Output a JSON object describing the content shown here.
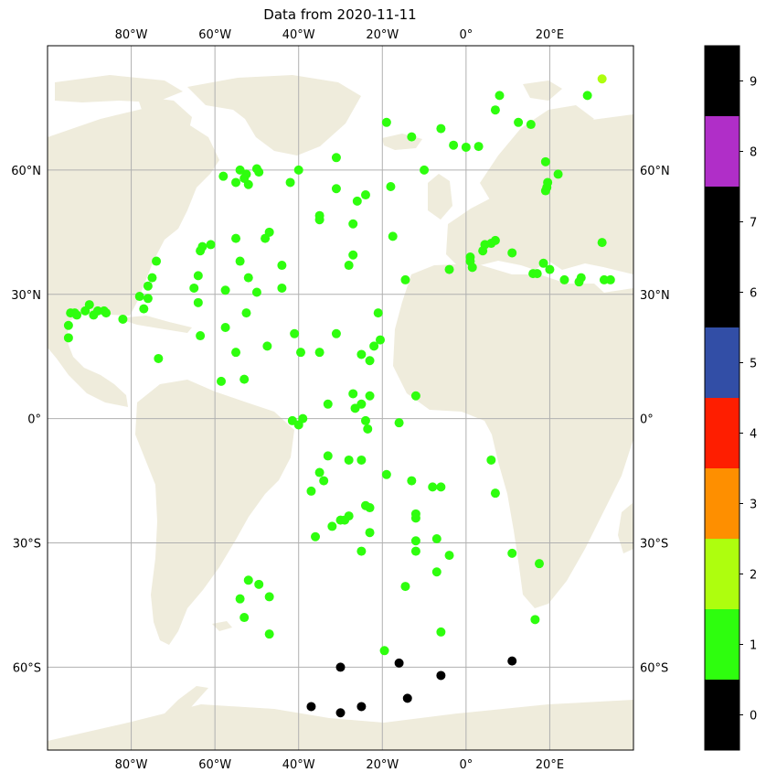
{
  "title": "Data from 2020-11-11",
  "map": {
    "lon_range": [
      -100,
      40
    ],
    "lat_range": [
      -80,
      90
    ],
    "grid": true,
    "land_color": "#efecdc",
    "ocean_color": "#ffffff",
    "grid_color": "#b0b0b0",
    "lon_ticks": [
      {
        "value": -80,
        "label": "80°W"
      },
      {
        "value": -60,
        "label": "60°W"
      },
      {
        "value": -40,
        "label": "40°W"
      },
      {
        "value": -20,
        "label": "20°W"
      },
      {
        "value": 0,
        "label": "0°"
      },
      {
        "value": 20,
        "label": "20°E"
      }
    ],
    "lat_ticks": [
      {
        "value": 60,
        "label": "60°N"
      },
      {
        "value": 30,
        "label": "30°N"
      },
      {
        "value": 0,
        "label": "0°"
      },
      {
        "value": -30,
        "label": "30°S"
      },
      {
        "value": -60,
        "label": "60°S"
      }
    ]
  },
  "colorbar": {
    "segments": [
      {
        "value": 0,
        "color": "#000000"
      },
      {
        "value": 1,
        "color": "#2efe0e"
      },
      {
        "value": 2,
        "color": "#aefe0e"
      },
      {
        "value": 3,
        "color": "#fe8f00"
      },
      {
        "value": 4,
        "color": "#fe1e00"
      },
      {
        "value": 5,
        "color": "#324ea6"
      },
      {
        "value": 6,
        "color": "#000000"
      },
      {
        "value": 7,
        "color": "#000000"
      },
      {
        "value": 8,
        "color": "#b02ec8"
      },
      {
        "value": 9,
        "color": "#000000"
      }
    ],
    "tick_labels": [
      "0",
      "1",
      "2",
      "3",
      "4",
      "5",
      "6",
      "7",
      "8",
      "9"
    ]
  },
  "chart_data": {
    "type": "scatter",
    "title": "Data from 2020-11-11",
    "x_axis": "longitude",
    "y_axis": "latitude",
    "points": [
      {
        "lon": 32.5,
        "lat": 82,
        "v": 2
      },
      {
        "lon": 8,
        "lat": 78,
        "v": 1
      },
      {
        "lon": 7,
        "lat": 74.5,
        "v": 1
      },
      {
        "lon": 29,
        "lat": 78,
        "v": 1
      },
      {
        "lon": 12.5,
        "lat": 71.5,
        "v": 1
      },
      {
        "lon": 15.5,
        "lat": 71,
        "v": 1
      },
      {
        "lon": -19,
        "lat": 71.5,
        "v": 1
      },
      {
        "lon": -6,
        "lat": 70,
        "v": 1
      },
      {
        "lon": -13,
        "lat": 68,
        "v": 1
      },
      {
        "lon": -3,
        "lat": 66,
        "v": 1
      },
      {
        "lon": 0,
        "lat": 65.5,
        "v": 1
      },
      {
        "lon": 3,
        "lat": 65.7,
        "v": 1
      },
      {
        "lon": -31,
        "lat": 63,
        "v": 1
      },
      {
        "lon": 19,
        "lat": 62,
        "v": 1
      },
      {
        "lon": -10,
        "lat": 60,
        "v": 1
      },
      {
        "lon": -40,
        "lat": 60,
        "v": 1
      },
      {
        "lon": 22,
        "lat": 59,
        "v": 1
      },
      {
        "lon": -58,
        "lat": 58.5,
        "v": 1
      },
      {
        "lon": -54,
        "lat": 60,
        "v": 1
      },
      {
        "lon": -50,
        "lat": 60.3,
        "v": 1
      },
      {
        "lon": -52.5,
        "lat": 59,
        "v": 1
      },
      {
        "lon": -55,
        "lat": 57,
        "v": 1
      },
      {
        "lon": -52,
        "lat": 56.5,
        "v": 1
      },
      {
        "lon": -49.5,
        "lat": 59.5,
        "v": 1
      },
      {
        "lon": -53,
        "lat": 58,
        "v": 1
      },
      {
        "lon": -42,
        "lat": 57,
        "v": 1
      },
      {
        "lon": -31,
        "lat": 55.5,
        "v": 1
      },
      {
        "lon": -18,
        "lat": 56,
        "v": 1
      },
      {
        "lon": -24,
        "lat": 54,
        "v": 1
      },
      {
        "lon": -26,
        "lat": 52.5,
        "v": 1
      },
      {
        "lon": 19.5,
        "lat": 57,
        "v": 1
      },
      {
        "lon": 19,
        "lat": 55,
        "v": 1
      },
      {
        "lon": 19.3,
        "lat": 55.8,
        "v": 1
      },
      {
        "lon": -35,
        "lat": 49,
        "v": 1
      },
      {
        "lon": -35,
        "lat": 48,
        "v": 1
      },
      {
        "lon": -27,
        "lat": 47,
        "v": 1
      },
      {
        "lon": -47,
        "lat": 45,
        "v": 1
      },
      {
        "lon": -48,
        "lat": 43.5,
        "v": 1
      },
      {
        "lon": -55,
        "lat": 43.5,
        "v": 1
      },
      {
        "lon": -17.5,
        "lat": 44,
        "v": 1
      },
      {
        "lon": 7,
        "lat": 43,
        "v": 1
      },
      {
        "lon": 4.5,
        "lat": 42,
        "v": 1
      },
      {
        "lon": 6,
        "lat": 42.3,
        "v": 1
      },
      {
        "lon": -61,
        "lat": 42,
        "v": 1
      },
      {
        "lon": -63,
        "lat": 41.5,
        "v": 1
      },
      {
        "lon": -63.5,
        "lat": 40.5,
        "v": 1
      },
      {
        "lon": -27,
        "lat": 39.5,
        "v": 1
      },
      {
        "lon": -54,
        "lat": 38,
        "v": 1
      },
      {
        "lon": -74,
        "lat": 38,
        "v": 1
      },
      {
        "lon": -28,
        "lat": 37,
        "v": 1
      },
      {
        "lon": -44,
        "lat": 37,
        "v": 1
      },
      {
        "lon": 11,
        "lat": 40,
        "v": 1
      },
      {
        "lon": 1,
        "lat": 39,
        "v": 1
      },
      {
        "lon": 1,
        "lat": 38,
        "v": 1
      },
      {
        "lon": 1.5,
        "lat": 36.5,
        "v": 1
      },
      {
        "lon": 4,
        "lat": 40.5,
        "v": 1
      },
      {
        "lon": 18.5,
        "lat": 37.5,
        "v": 1
      },
      {
        "lon": -4,
        "lat": 36,
        "v": 1
      },
      {
        "lon": 20,
        "lat": 36,
        "v": 1
      },
      {
        "lon": 16,
        "lat": 35,
        "v": 1
      },
      {
        "lon": 17,
        "lat": 35,
        "v": 1
      },
      {
        "lon": -75,
        "lat": 34,
        "v": 1
      },
      {
        "lon": -64,
        "lat": 34.5,
        "v": 1
      },
      {
        "lon": -52,
        "lat": 34,
        "v": 1
      },
      {
        "lon": -14.5,
        "lat": 33.5,
        "v": 1
      },
      {
        "lon": 23.5,
        "lat": 33.5,
        "v": 1
      },
      {
        "lon": 27,
        "lat": 33,
        "v": 1
      },
      {
        "lon": 27.5,
        "lat": 34,
        "v": 1
      },
      {
        "lon": 33,
        "lat": 33.5,
        "v": 1
      },
      {
        "lon": 34.5,
        "lat": 33.5,
        "v": 1
      },
      {
        "lon": 32.5,
        "lat": 42.5,
        "v": 1
      },
      {
        "lon": -76,
        "lat": 32,
        "v": 1
      },
      {
        "lon": -65,
        "lat": 31.5,
        "v": 1
      },
      {
        "lon": -57.5,
        "lat": 31,
        "v": 1
      },
      {
        "lon": -50,
        "lat": 30.5,
        "v": 1
      },
      {
        "lon": -44,
        "lat": 31.5,
        "v": 1
      },
      {
        "lon": -78,
        "lat": 29.5,
        "v": 1
      },
      {
        "lon": -76,
        "lat": 29,
        "v": 1
      },
      {
        "lon": -64,
        "lat": 28,
        "v": 1
      },
      {
        "lon": -90,
        "lat": 27.5,
        "v": 1
      },
      {
        "lon": -88,
        "lat": 26,
        "v": 1
      },
      {
        "lon": -86.5,
        "lat": 26,
        "v": 1
      },
      {
        "lon": -86,
        "lat": 25.5,
        "v": 1
      },
      {
        "lon": -89,
        "lat": 25,
        "v": 1
      },
      {
        "lon": -91,
        "lat": 26,
        "v": 1
      },
      {
        "lon": -93,
        "lat": 25,
        "v": 1
      },
      {
        "lon": -94.5,
        "lat": 25.5,
        "v": 1
      },
      {
        "lon": -93.5,
        "lat": 25.5,
        "v": 1
      },
      {
        "lon": -77,
        "lat": 26.5,
        "v": 1
      },
      {
        "lon": -52.5,
        "lat": 25.5,
        "v": 1
      },
      {
        "lon": -21,
        "lat": 25.5,
        "v": 1
      },
      {
        "lon": -95,
        "lat": 22.5,
        "v": 1
      },
      {
        "lon": -82,
        "lat": 24,
        "v": 1
      },
      {
        "lon": -95,
        "lat": 19.5,
        "v": 1
      },
      {
        "lon": -57.5,
        "lat": 22,
        "v": 1
      },
      {
        "lon": -63.5,
        "lat": 20,
        "v": 1
      },
      {
        "lon": -41,
        "lat": 20.5,
        "v": 1
      },
      {
        "lon": -31,
        "lat": 20.5,
        "v": 1
      },
      {
        "lon": -20.5,
        "lat": 19,
        "v": 1
      },
      {
        "lon": -22,
        "lat": 17.5,
        "v": 1
      },
      {
        "lon": -47.5,
        "lat": 17.5,
        "v": 1
      },
      {
        "lon": -55,
        "lat": 16,
        "v": 1
      },
      {
        "lon": -39.5,
        "lat": 16,
        "v": 1
      },
      {
        "lon": -35,
        "lat": 16,
        "v": 1
      },
      {
        "lon": -25,
        "lat": 15.5,
        "v": 1
      },
      {
        "lon": -23,
        "lat": 14,
        "v": 1
      },
      {
        "lon": -73.5,
        "lat": 14.5,
        "v": 1
      },
      {
        "lon": -53,
        "lat": 9.5,
        "v": 1
      },
      {
        "lon": -58.5,
        "lat": 9,
        "v": 1
      },
      {
        "lon": -27,
        "lat": 6,
        "v": 1
      },
      {
        "lon": -23,
        "lat": 5.5,
        "v": 1
      },
      {
        "lon": -12,
        "lat": 5.5,
        "v": 1
      },
      {
        "lon": -33,
        "lat": 3.5,
        "v": 1
      },
      {
        "lon": -25,
        "lat": 3.5,
        "v": 1
      },
      {
        "lon": -26.5,
        "lat": 2.5,
        "v": 1
      },
      {
        "lon": -41.5,
        "lat": -0.5,
        "v": 1
      },
      {
        "lon": -39,
        "lat": 0,
        "v": 1
      },
      {
        "lon": -40,
        "lat": -1.5,
        "v": 1
      },
      {
        "lon": -24,
        "lat": -0.5,
        "v": 1
      },
      {
        "lon": -23.5,
        "lat": -2.5,
        "v": 1
      },
      {
        "lon": -16,
        "lat": -1,
        "v": 1
      },
      {
        "lon": -33,
        "lat": -9,
        "v": 1
      },
      {
        "lon": -28,
        "lat": -10,
        "v": 1
      },
      {
        "lon": -25,
        "lat": -10,
        "v": 1
      },
      {
        "lon": 6,
        "lat": -10,
        "v": 1
      },
      {
        "lon": -35,
        "lat": -13,
        "v": 1
      },
      {
        "lon": -19,
        "lat": -13.5,
        "v": 1
      },
      {
        "lon": -34,
        "lat": -15,
        "v": 1
      },
      {
        "lon": -13,
        "lat": -15,
        "v": 1
      },
      {
        "lon": -37,
        "lat": -17.5,
        "v": 1
      },
      {
        "lon": -8,
        "lat": -16.5,
        "v": 1
      },
      {
        "lon": -6,
        "lat": -16.5,
        "v": 1
      },
      {
        "lon": 7,
        "lat": -18,
        "v": 1
      },
      {
        "lon": -24,
        "lat": -21,
        "v": 1
      },
      {
        "lon": -23,
        "lat": -21.5,
        "v": 1
      },
      {
        "lon": -28,
        "lat": -23.5,
        "v": 1
      },
      {
        "lon": -12,
        "lat": -23,
        "v": 1
      },
      {
        "lon": -12,
        "lat": -24,
        "v": 1
      },
      {
        "lon": -30,
        "lat": -24.5,
        "v": 1
      },
      {
        "lon": -29,
        "lat": -24.5,
        "v": 1
      },
      {
        "lon": -32,
        "lat": -26,
        "v": 1
      },
      {
        "lon": -23,
        "lat": -27.5,
        "v": 1
      },
      {
        "lon": -36,
        "lat": -28.5,
        "v": 1
      },
      {
        "lon": -12,
        "lat": -29.5,
        "v": 1
      },
      {
        "lon": -7,
        "lat": -29,
        "v": 1
      },
      {
        "lon": -25,
        "lat": -32,
        "v": 1
      },
      {
        "lon": -12,
        "lat": -32,
        "v": 1
      },
      {
        "lon": -4,
        "lat": -33,
        "v": 1
      },
      {
        "lon": 11,
        "lat": -32.5,
        "v": 1
      },
      {
        "lon": 17.5,
        "lat": -35,
        "v": 1
      },
      {
        "lon": -7,
        "lat": -37,
        "v": 1
      },
      {
        "lon": -52,
        "lat": -39,
        "v": 1
      },
      {
        "lon": -49.5,
        "lat": -40,
        "v": 1
      },
      {
        "lon": -14.5,
        "lat": -40.5,
        "v": 1
      },
      {
        "lon": -54,
        "lat": -43.5,
        "v": 1
      },
      {
        "lon": -47,
        "lat": -43,
        "v": 1
      },
      {
        "lon": -53,
        "lat": -48,
        "v": 1
      },
      {
        "lon": 16.5,
        "lat": -48.5,
        "v": 1
      },
      {
        "lon": -47,
        "lat": -52,
        "v": 1
      },
      {
        "lon": -6,
        "lat": -51.5,
        "v": 1
      },
      {
        "lon": -19.5,
        "lat": -56,
        "v": 1
      },
      {
        "lon": -30,
        "lat": -60,
        "v": 0
      },
      {
        "lon": -16,
        "lat": -59,
        "v": 0
      },
      {
        "lon": 11,
        "lat": -58.5,
        "v": 0
      },
      {
        "lon": -6,
        "lat": -62,
        "v": 0
      },
      {
        "lon": -14,
        "lat": -67.5,
        "v": 0
      },
      {
        "lon": -37,
        "lat": -69.5,
        "v": 0
      },
      {
        "lon": -25,
        "lat": -69.5,
        "v": 0
      },
      {
        "lon": -30,
        "lat": -71,
        "v": 0
      }
    ]
  }
}
